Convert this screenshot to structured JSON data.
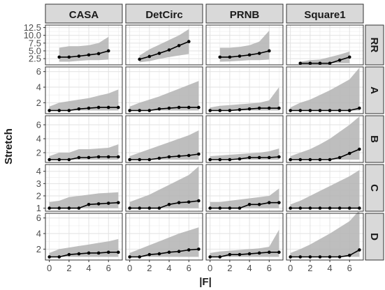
{
  "chart_data": {
    "type": "line",
    "xlabel": "|F|",
    "ylabel": "Stretch",
    "columns": [
      "CASA",
      "DetCirc",
      "PRNB",
      "Square1"
    ],
    "rows": [
      "RR",
      "A",
      "B",
      "C",
      "D"
    ],
    "x_ticks": [
      0,
      2,
      4,
      6
    ],
    "xlim": [
      -0.4,
      7.4
    ],
    "row_axes": {
      "RR": {
        "ylim": [
          0.5,
          13.3
        ],
        "ticks": [
          2.5,
          5.0,
          7.5,
          10.0,
          12.5
        ],
        "tick_labels": [
          "2.5",
          "5.0",
          "7.5",
          "10.0",
          "12.5"
        ]
      },
      "A": {
        "ylim": [
          0.6,
          6.6
        ],
        "ticks": [
          2,
          4,
          6
        ],
        "tick_labels": [
          "2",
          "4",
          "6"
        ]
      },
      "B": {
        "ylim": [
          0.6,
          7.3
        ],
        "ticks": [
          2,
          4,
          6
        ],
        "tick_labels": [
          "2",
          "4",
          "6"
        ]
      },
      "C": {
        "ylim": [
          0.75,
          4.55
        ],
        "ticks": [
          1,
          2,
          3,
          4
        ],
        "tick_labels": [
          "1",
          "2",
          "3",
          "4"
        ]
      },
      "D": {
        "ylim": [
          0.6,
          6.6
        ],
        "ticks": [
          2,
          4,
          6
        ],
        "tick_labels": [
          "2",
          "4",
          "6"
        ]
      }
    },
    "colors": {
      "line": "#000000",
      "band": "#b3b3b3",
      "strip_bg": "#d9d9d9",
      "grid": "#ebebeb"
    },
    "panels": {
      "RR": {
        "CASA": {
          "x": [
            1,
            2,
            3,
            4,
            5,
            6
          ],
          "median": [
            3.0,
            3.0,
            3.3,
            3.7,
            4.1,
            5.0
          ],
          "lower": [
            1.5,
            1.5,
            1.8,
            2.0,
            2.0,
            2.2
          ],
          "upper": [
            6.0,
            6.5,
            6.5,
            6.8,
            7.5,
            9.5
          ]
        },
        "DetCirc": {
          "x": [
            1,
            2,
            3,
            4,
            5,
            6
          ],
          "median": [
            2.3,
            3.2,
            4.2,
            5.3,
            6.7,
            8.0
          ],
          "lower": [
            1.3,
            1.7,
            2.4,
            3.0,
            3.5,
            4.0
          ],
          "upper": [
            3.5,
            5.5,
            7.0,
            8.5,
            10.0,
            12.0
          ]
        },
        "PRNB": {
          "x": [
            1,
            2,
            3,
            4,
            5,
            6
          ],
          "median": [
            3.0,
            3.0,
            3.3,
            3.7,
            4.2,
            5.0
          ],
          "lower": [
            1.5,
            1.6,
            1.8,
            2.0,
            2.0,
            2.2
          ],
          "upper": [
            6.0,
            6.0,
            6.3,
            6.8,
            8.0,
            11.5
          ]
        },
        "Square1": {
          "x": [
            1,
            2,
            3,
            4,
            5,
            6
          ],
          "median": [
            1.0,
            1.0,
            1.0,
            1.0,
            2.0,
            3.0
          ],
          "lower": [
            1.0,
            1.0,
            1.0,
            1.0,
            1.0,
            1.0
          ],
          "upper": [
            1.5,
            2.0,
            2.2,
            3.0,
            3.8,
            4.8
          ]
        }
      },
      "A": {
        "CASA": {
          "x": [
            0,
            1,
            2,
            3,
            4,
            5,
            6,
            7
          ],
          "median": [
            1.0,
            1.0,
            1.0,
            1.2,
            1.3,
            1.4,
            1.4,
            1.4
          ],
          "lower": [
            1.0,
            1.0,
            1.0,
            1.0,
            1.0,
            1.0,
            1.0,
            1.0
          ],
          "upper": [
            1.5,
            2.0,
            2.2,
            2.4,
            2.6,
            2.9,
            3.2,
            3.7
          ]
        },
        "DetCirc": {
          "x": [
            0,
            1,
            2,
            3,
            4,
            5,
            6,
            7
          ],
          "median": [
            1.0,
            1.0,
            1.0,
            1.2,
            1.3,
            1.4,
            1.4,
            1.4
          ],
          "lower": [
            1.0,
            1.0,
            1.0,
            1.0,
            1.0,
            1.0,
            1.0,
            1.0
          ],
          "upper": [
            1.5,
            2.0,
            2.4,
            2.8,
            3.3,
            3.8,
            4.3,
            4.8
          ]
        },
        "PRNB": {
          "x": [
            0,
            1,
            2,
            3,
            4,
            5,
            6,
            7
          ],
          "median": [
            1.0,
            1.0,
            1.0,
            1.1,
            1.2,
            1.3,
            1.3,
            1.3
          ],
          "lower": [
            1.0,
            1.0,
            1.0,
            1.0,
            1.0,
            1.0,
            1.0,
            1.0
          ],
          "upper": [
            1.4,
            1.6,
            1.7,
            1.8,
            1.9,
            2.0,
            2.3,
            4.0
          ]
        },
        "Square1": {
          "x": [
            0,
            1,
            2,
            3,
            4,
            5,
            6,
            7
          ],
          "median": [
            1.0,
            1.0,
            1.0,
            1.0,
            1.0,
            1.0,
            1.0,
            1.3
          ],
          "lower": [
            1.0,
            1.0,
            1.0,
            1.0,
            1.0,
            1.0,
            1.0,
            1.0
          ],
          "upper": [
            1.4,
            2.0,
            2.4,
            3.0,
            3.6,
            4.3,
            5.0,
            6.5
          ]
        }
      },
      "B": {
        "CASA": {
          "x": [
            0,
            1,
            2,
            3,
            4,
            5,
            6,
            7
          ],
          "median": [
            1.0,
            1.0,
            1.0,
            1.3,
            1.3,
            1.4,
            1.4,
            1.4
          ],
          "lower": [
            1.0,
            1.0,
            1.0,
            1.0,
            1.0,
            1.0,
            1.0,
            1.0
          ],
          "upper": [
            1.5,
            2.0,
            2.0,
            2.5,
            2.5,
            2.6,
            2.7,
            3.2
          ]
        },
        "DetCirc": {
          "x": [
            0,
            1,
            2,
            3,
            4,
            5,
            6,
            7
          ],
          "median": [
            1.0,
            1.0,
            1.0,
            1.2,
            1.4,
            1.5,
            1.6,
            1.8
          ],
          "lower": [
            1.0,
            1.0,
            1.0,
            1.0,
            1.0,
            1.0,
            1.0,
            1.0
          ],
          "upper": [
            1.5,
            2.0,
            2.5,
            3.0,
            3.5,
            4.0,
            4.5,
            5.2
          ]
        },
        "PRNB": {
          "x": [
            0,
            1,
            2,
            3,
            4,
            5,
            6,
            7
          ],
          "median": [
            1.0,
            1.0,
            1.0,
            1.1,
            1.3,
            1.3,
            1.3,
            1.4
          ],
          "lower": [
            1.0,
            1.0,
            1.0,
            1.0,
            1.0,
            1.0,
            1.0,
            1.0
          ],
          "upper": [
            1.5,
            1.6,
            1.7,
            1.8,
            1.9,
            2.0,
            2.2,
            2.6
          ]
        },
        "Square1": {
          "x": [
            0,
            1,
            2,
            3,
            4,
            5,
            6,
            7
          ],
          "median": [
            1.0,
            1.0,
            1.0,
            1.0,
            1.0,
            1.3,
            1.9,
            2.5
          ],
          "lower": [
            1.0,
            1.0,
            1.0,
            1.0,
            1.0,
            1.0,
            1.0,
            1.0
          ],
          "upper": [
            1.5,
            2.0,
            2.5,
            3.2,
            4.0,
            5.0,
            6.0,
            7.2
          ]
        }
      },
      "C": {
        "CASA": {
          "x": [
            0,
            1,
            2,
            3,
            4,
            5,
            6,
            7
          ],
          "median": [
            1.0,
            1.0,
            1.0,
            1.0,
            1.3,
            1.35,
            1.4,
            1.45
          ],
          "lower": [
            1.0,
            1.0,
            1.0,
            1.0,
            1.0,
            1.0,
            1.0,
            1.0
          ],
          "upper": [
            1.5,
            1.6,
            1.9,
            2.0,
            2.1,
            2.2,
            2.25,
            2.3
          ]
        },
        "DetCirc": {
          "x": [
            0,
            1,
            2,
            3,
            4,
            5,
            6,
            7
          ],
          "median": [
            1.0,
            1.0,
            1.0,
            1.0,
            1.3,
            1.45,
            1.5,
            1.6
          ],
          "lower": [
            1.0,
            1.0,
            1.0,
            1.0,
            1.0,
            1.0,
            1.0,
            1.0
          ],
          "upper": [
            1.5,
            1.8,
            2.1,
            2.5,
            2.9,
            3.3,
            3.7,
            4.4
          ]
        },
        "PRNB": {
          "x": [
            0,
            1,
            2,
            3,
            4,
            5,
            6,
            7
          ],
          "median": [
            1.0,
            1.0,
            1.0,
            1.0,
            1.3,
            1.3,
            1.45,
            1.45
          ],
          "lower": [
            1.0,
            1.0,
            1.0,
            1.0,
            1.0,
            1.0,
            1.0,
            1.0
          ],
          "upper": [
            1.5,
            1.5,
            1.6,
            1.7,
            1.8,
            1.9,
            2.0,
            2.6
          ]
        },
        "Square1": {
          "x": [
            0,
            1,
            2,
            3,
            4,
            5,
            6,
            7
          ],
          "median": [
            1.0,
            1.0,
            1.0,
            1.0,
            1.0,
            1.0,
            1.0,
            1.0
          ],
          "lower": [
            1.0,
            1.0,
            1.0,
            1.0,
            1.0,
            1.0,
            1.0,
            1.0
          ],
          "upper": [
            1.3,
            1.6,
            2.0,
            2.4,
            2.8,
            3.2,
            3.6,
            4.1
          ]
        }
      },
      "D": {
        "CASA": {
          "x": [
            0,
            1,
            2,
            3,
            4,
            5,
            6,
            7
          ],
          "median": [
            1.0,
            1.0,
            1.3,
            1.4,
            1.5,
            1.5,
            1.6,
            1.6
          ],
          "lower": [
            1.0,
            1.0,
            1.0,
            1.0,
            1.0,
            1.0,
            1.0,
            1.0
          ],
          "upper": [
            1.5,
            2.0,
            2.2,
            2.4,
            2.6,
            2.8,
            3.0,
            3.3
          ]
        },
        "DetCirc": {
          "x": [
            0,
            1,
            2,
            3,
            4,
            5,
            6,
            7
          ],
          "median": [
            1.0,
            1.0,
            1.3,
            1.4,
            1.6,
            1.7,
            1.9,
            2.0
          ],
          "lower": [
            1.0,
            1.0,
            1.0,
            1.0,
            1.0,
            1.0,
            1.0,
            1.0
          ],
          "upper": [
            1.5,
            2.0,
            2.5,
            3.0,
            3.5,
            4.0,
            4.4,
            4.8
          ]
        },
        "PRNB": {
          "x": [
            0,
            1,
            2,
            3,
            4,
            5,
            6,
            7
          ],
          "median": [
            1.0,
            1.0,
            1.3,
            1.3,
            1.4,
            1.5,
            1.6,
            1.6
          ],
          "lower": [
            1.0,
            1.0,
            1.0,
            1.0,
            1.0,
            1.0,
            1.0,
            1.0
          ],
          "upper": [
            1.5,
            1.7,
            1.8,
            1.9,
            2.0,
            2.1,
            2.3,
            4.5
          ]
        },
        "Square1": {
          "x": [
            0,
            1,
            2,
            3,
            4,
            5,
            6,
            7
          ],
          "median": [
            1.0,
            1.0,
            1.0,
            1.0,
            1.0,
            1.0,
            1.2,
            1.9
          ],
          "lower": [
            1.0,
            1.0,
            1.0,
            1.0,
            1.0,
            1.0,
            1.0,
            1.0
          ],
          "upper": [
            1.5,
            2.0,
            2.6,
            3.3,
            4.0,
            4.8,
            5.6,
            7.0
          ]
        }
      }
    }
  }
}
